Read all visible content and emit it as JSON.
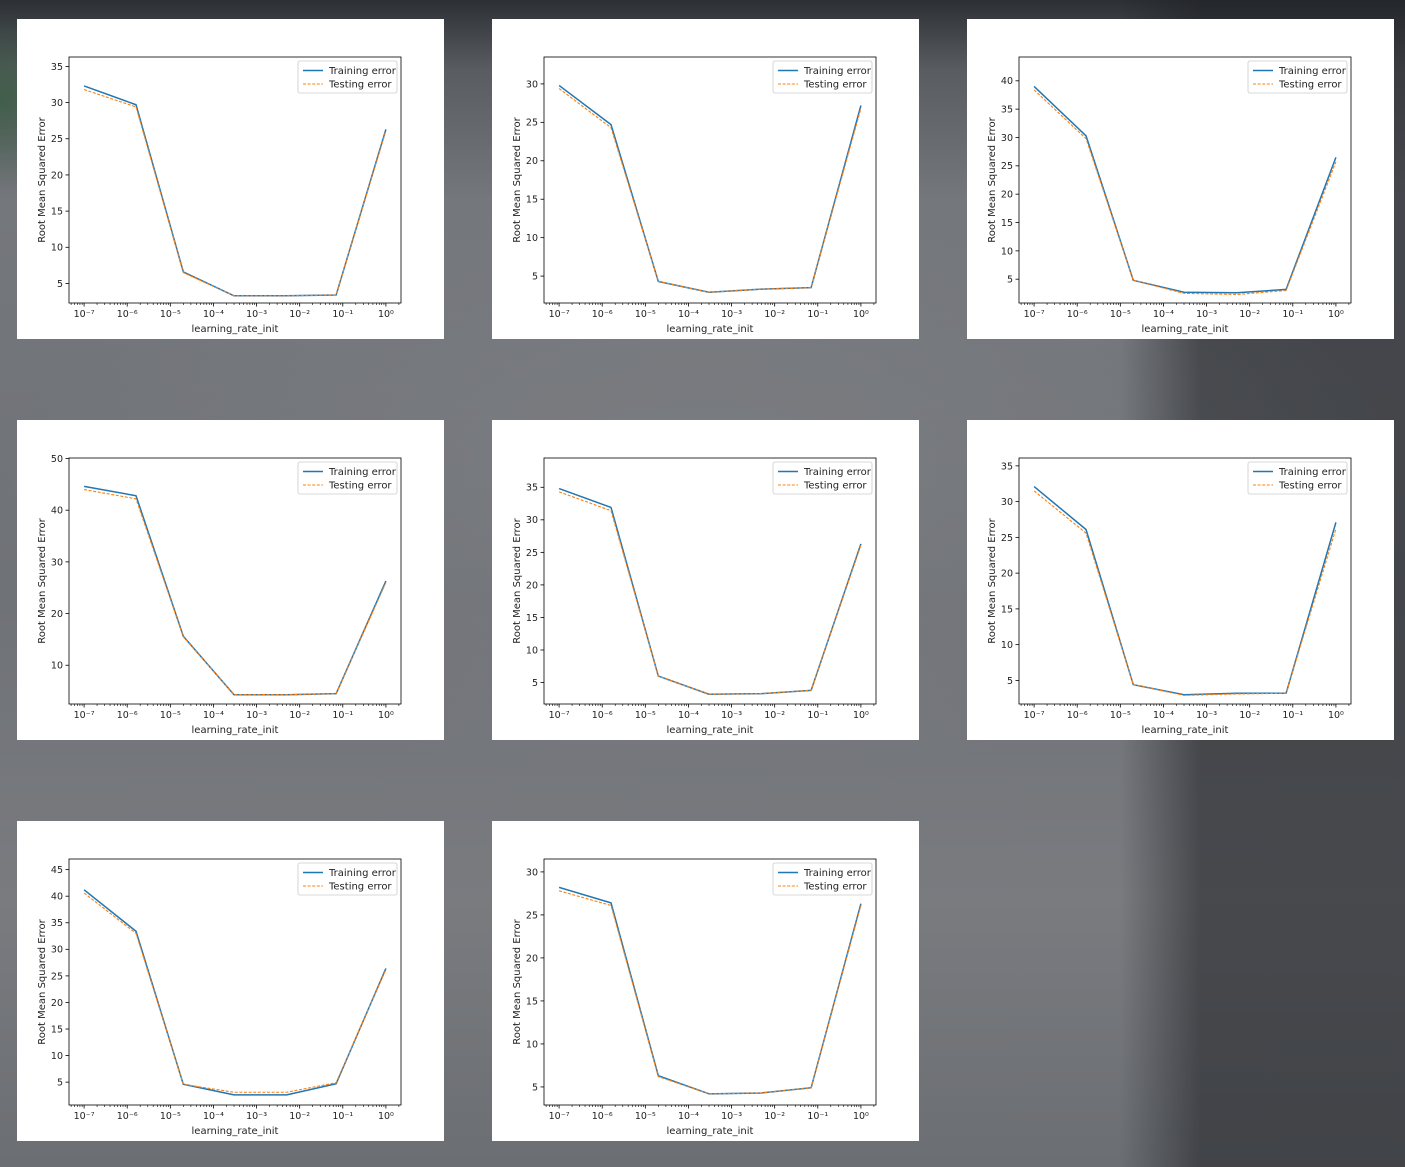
{
  "chart_data": [
    {
      "type": "line",
      "x": [
        "1e-7",
        "1.6e-6",
        "2e-5",
        "3e-4",
        "5e-3",
        "7e-2",
        "1"
      ],
      "xlabel": "learning_rate_init",
      "ylabel": "Root Mean Squared Error",
      "xscale": "log",
      "xticks": [
        -7,
        -6,
        -5,
        -4,
        -3,
        -2,
        -1,
        0
      ],
      "ylim": [
        2.3,
        36.3
      ],
      "yticks": [
        5,
        10,
        15,
        20,
        25,
        30,
        35
      ],
      "legend": "top-right",
      "series": [
        {
          "name": "Training error",
          "color": "#1f77b4",
          "style": "solid",
          "values": [
            32.3,
            29.7,
            6.6,
            3.3,
            3.3,
            3.4,
            26.3
          ]
        },
        {
          "name": "Testing error",
          "color": "#ff7f0e",
          "style": "dashed",
          "values": [
            31.8,
            29.4,
            6.5,
            3.3,
            3.3,
            3.4,
            26.1
          ]
        }
      ]
    },
    {
      "type": "line",
      "x": [
        "1e-7",
        "1.6e-6",
        "2e-5",
        "3e-4",
        "5e-3",
        "7e-2",
        "1"
      ],
      "xlabel": "learning_rate_init",
      "ylabel": "Root Mean Squared Error",
      "xscale": "log",
      "xticks": [
        -7,
        -6,
        -5,
        -4,
        -3,
        -2,
        -1,
        0
      ],
      "ylim": [
        1.5,
        33.5
      ],
      "yticks": [
        5,
        10,
        15,
        20,
        25,
        30
      ],
      "legend": "top-right",
      "series": [
        {
          "name": "Training error",
          "color": "#1f77b4",
          "style": "solid",
          "values": [
            29.8,
            24.7,
            4.3,
            2.9,
            3.3,
            3.5,
            27.2
          ]
        },
        {
          "name": "Testing error",
          "color": "#ff7f0e",
          "style": "dashed",
          "values": [
            29.4,
            24.3,
            4.3,
            2.9,
            3.3,
            3.5,
            26.8
          ]
        }
      ]
    },
    {
      "type": "line",
      "x": [
        "1e-7",
        "1.6e-6",
        "2e-5",
        "3e-4",
        "5e-3",
        "7e-2",
        "1"
      ],
      "xlabel": "learning_rate_init",
      "ylabel": "Root Mean Squared Error",
      "xscale": "log",
      "xticks": [
        -7,
        -6,
        -5,
        -4,
        -3,
        -2,
        -1,
        0
      ],
      "ylim": [
        0.8,
        44.2
      ],
      "yticks": [
        5,
        10,
        15,
        20,
        25,
        30,
        35,
        40
      ],
      "legend": "top-right",
      "series": [
        {
          "name": "Training error",
          "color": "#1f77b4",
          "style": "solid",
          "values": [
            39.0,
            30.3,
            4.8,
            2.7,
            2.6,
            3.2,
            26.5
          ]
        },
        {
          "name": "Testing error",
          "color": "#ff7f0e",
          "style": "dashed",
          "values": [
            38.4,
            29.8,
            4.8,
            2.5,
            2.3,
            3.0,
            25.7
          ]
        }
      ]
    },
    {
      "type": "line",
      "x": [
        "1e-7",
        "1.6e-6",
        "2e-5",
        "3e-4",
        "5e-3",
        "7e-2",
        "1"
      ],
      "xlabel": "learning_rate_init",
      "ylabel": "Root Mean Squared Error",
      "xscale": "log",
      "xticks": [
        -7,
        -6,
        -5,
        -4,
        -3,
        -2,
        -1,
        0
      ],
      "ylim": [
        2.5,
        50.1
      ],
      "yticks": [
        10,
        20,
        30,
        40,
        50
      ],
      "legend": "top-right",
      "series": [
        {
          "name": "Training error",
          "color": "#1f77b4",
          "style": "solid",
          "values": [
            44.6,
            42.8,
            15.6,
            4.3,
            4.3,
            4.5,
            26.3
          ]
        },
        {
          "name": "Testing error",
          "color": "#ff7f0e",
          "style": "dashed",
          "values": [
            44.0,
            42.2,
            15.5,
            4.3,
            4.3,
            4.5,
            26.0
          ]
        }
      ]
    },
    {
      "type": "line",
      "x": [
        "1e-7",
        "1.6e-6",
        "2e-5",
        "3e-4",
        "5e-3",
        "7e-2",
        "1"
      ],
      "xlabel": "learning_rate_init",
      "ylabel": "Root Mean Squared Error",
      "xscale": "log",
      "xticks": [
        -7,
        -6,
        -5,
        -4,
        -3,
        -2,
        -1,
        0
      ],
      "ylim": [
        1.7,
        39.5
      ],
      "yticks": [
        5,
        10,
        15,
        20,
        25,
        30,
        35
      ],
      "legend": "top-right",
      "series": [
        {
          "name": "Training error",
          "color": "#1f77b4",
          "style": "solid",
          "values": [
            34.8,
            31.9,
            6.0,
            3.2,
            3.3,
            3.8,
            26.3
          ]
        },
        {
          "name": "Testing error",
          "color": "#ff7f0e",
          "style": "dashed",
          "values": [
            34.3,
            31.4,
            6.0,
            3.2,
            3.3,
            3.8,
            26.1
          ]
        }
      ]
    },
    {
      "type": "line",
      "x": [
        "1e-7",
        "1.6e-6",
        "2e-5",
        "3e-4",
        "5e-3",
        "7e-2",
        "1"
      ],
      "xlabel": "learning_rate_init",
      "ylabel": "Root Mean Squared Error",
      "xscale": "log",
      "xticks": [
        -7,
        -6,
        -5,
        -4,
        -3,
        -2,
        -1,
        0
      ],
      "ylim": [
        1.7,
        36.1
      ],
      "yticks": [
        5,
        10,
        15,
        20,
        25,
        30,
        35
      ],
      "legend": "top-right",
      "series": [
        {
          "name": "Training error",
          "color": "#1f77b4",
          "style": "solid",
          "values": [
            32.1,
            26.1,
            4.4,
            3.0,
            3.2,
            3.2,
            27.1
          ]
        },
        {
          "name": "Testing error",
          "color": "#ff7f0e",
          "style": "dashed",
          "values": [
            31.5,
            25.6,
            4.4,
            2.9,
            3.1,
            3.2,
            26.2
          ]
        }
      ]
    },
    {
      "type": "line",
      "x": [
        "1e-7",
        "1.6e-6",
        "2e-5",
        "3e-4",
        "5e-3",
        "7e-2",
        "1"
      ],
      "xlabel": "learning_rate_init",
      "ylabel": "Root Mean Squared Error",
      "xscale": "log",
      "xticks": [
        -7,
        -6,
        -5,
        -4,
        -3,
        -2,
        -1,
        0
      ],
      "ylim": [
        0.7,
        47.0
      ],
      "yticks": [
        5,
        10,
        15,
        20,
        25,
        30,
        35,
        40,
        45
      ],
      "legend": "top-right",
      "series": [
        {
          "name": "Training error",
          "color": "#1f77b4",
          "style": "solid",
          "values": [
            41.2,
            33.4,
            4.6,
            2.6,
            2.6,
            4.7,
            26.4
          ]
        },
        {
          "name": "Testing error",
          "color": "#ff7f0e",
          "style": "dashed",
          "values": [
            40.6,
            33.0,
            4.6,
            3.1,
            3.1,
            4.9,
            26.2
          ]
        }
      ]
    },
    {
      "type": "line",
      "x": [
        "1e-7",
        "1.6e-6",
        "2e-5",
        "3e-4",
        "5e-3",
        "7e-2",
        "1"
      ],
      "xlabel": "learning_rate_init",
      "ylabel": "Root Mean Squared Error",
      "xscale": "log",
      "xticks": [
        -7,
        -6,
        -5,
        -4,
        -3,
        -2,
        -1,
        0
      ],
      "ylim": [
        2.9,
        31.5
      ],
      "yticks": [
        5,
        10,
        15,
        20,
        25,
        30
      ],
      "legend": "top-right",
      "series": [
        {
          "name": "Training error",
          "color": "#1f77b4",
          "style": "solid",
          "values": [
            28.2,
            26.4,
            6.3,
            4.2,
            4.3,
            4.9,
            26.3
          ]
        },
        {
          "name": "Testing error",
          "color": "#ff7f0e",
          "style": "dashed",
          "values": [
            27.8,
            26.1,
            6.2,
            4.2,
            4.3,
            4.9,
            26.1
          ]
        }
      ]
    }
  ]
}
